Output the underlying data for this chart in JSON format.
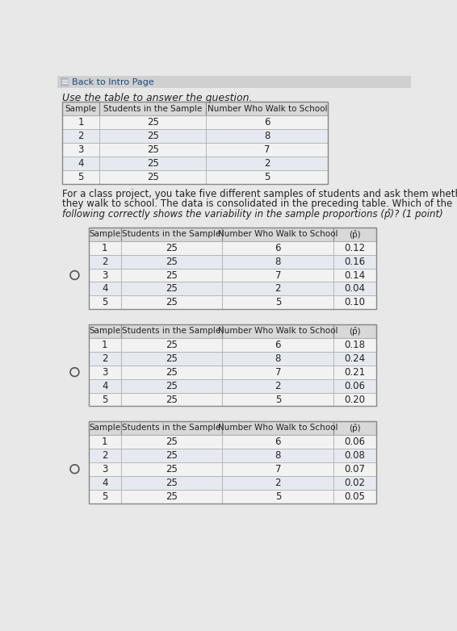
{
  "bg_color": "#e8e8e8",
  "page_bg": "#e8e8e8",
  "header_bar_color": "#d0d0d0",
  "header_text": "Back to Intro Page",
  "instruction": "Use the table to answer the question.",
  "question_text": "For a class project, you take five different samples of students and ask them whether\nthey walk to school. The data is consolidated in the preceding table. Which of the\nfollowing correctly shows the variability in the sample proportions (p̂)? (1 point)",
  "top_table": {
    "headers": [
      "Sample",
      "Students in the Sample",
      "Number Who Walk to School"
    ],
    "rows": [
      [
        1,
        25,
        6
      ],
      [
        2,
        25,
        8
      ],
      [
        3,
        25,
        7
      ],
      [
        4,
        25,
        2
      ],
      [
        5,
        25,
        5
      ]
    ]
  },
  "answer_tables": [
    {
      "headers": [
        "Sample",
        "Students in the Sample",
        "Number Who Walk to School",
        "(p̂)"
      ],
      "rows": [
        [
          1,
          25,
          6,
          "0.12"
        ],
        [
          2,
          25,
          8,
          "0.16"
        ],
        [
          3,
          25,
          7,
          "0.14"
        ],
        [
          4,
          25,
          2,
          "0.04"
        ],
        [
          5,
          25,
          5,
          "0.10"
        ]
      ]
    },
    {
      "headers": [
        "Sample",
        "Students in the Sample",
        "Number Who Walk to School",
        "(p̂)"
      ],
      "rows": [
        [
          1,
          25,
          6,
          "0.18"
        ],
        [
          2,
          25,
          8,
          "0.24"
        ],
        [
          3,
          25,
          7,
          "0.21"
        ],
        [
          4,
          25,
          2,
          "0.06"
        ],
        [
          5,
          25,
          5,
          "0.20"
        ]
      ]
    },
    {
      "headers": [
        "Sample",
        "Students in the Sample",
        "Number Who Walk to School",
        "(p̂)"
      ],
      "rows": [
        [
          1,
          25,
          6,
          "0.06"
        ],
        [
          2,
          25,
          8,
          "0.08"
        ],
        [
          3,
          25,
          7,
          "0.07"
        ],
        [
          4,
          25,
          2,
          "0.02"
        ],
        [
          5,
          25,
          5,
          "0.05"
        ]
      ]
    }
  ],
  "table_border_color": "#888888",
  "cell_line_color": "#aaaaaa",
  "header_bg": "#e0e0e0",
  "row_bg_even": "#f0f0f0",
  "row_bg_odd": "#e4e8ee",
  "text_color": "#222222",
  "radio_color": "#555555"
}
